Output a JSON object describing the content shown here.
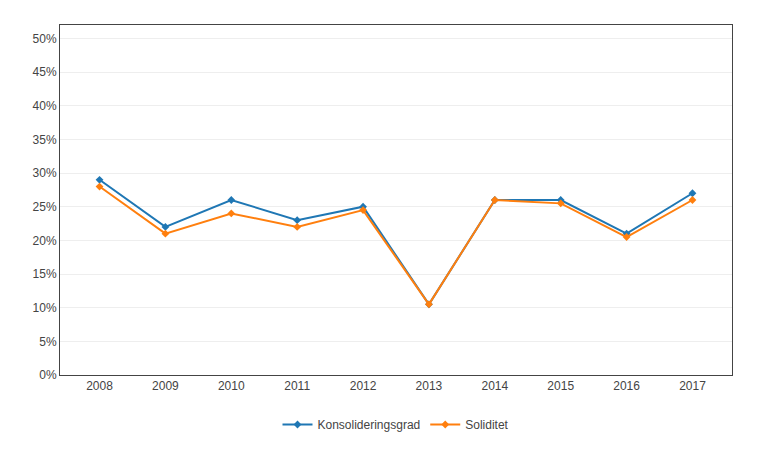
{
  "chart_data": {
    "type": "line",
    "x": [
      2008,
      2009,
      2010,
      2011,
      2012,
      2013,
      2014,
      2015,
      2016,
      2017
    ],
    "series": [
      {
        "name": "Konsolideringsgrad",
        "values": [
          0.29,
          0.22,
          0.26,
          0.23,
          0.25,
          0.105,
          0.26,
          0.26,
          0.21,
          0.27
        ],
        "marker": "diamond",
        "line_style": "solid"
      },
      {
        "name": "Soliditet",
        "values": [
          0.28,
          0.21,
          0.24,
          0.22,
          0.245,
          0.105,
          0.26,
          0.255,
          0.205,
          0.26
        ],
        "marker": "diamond",
        "line_style": "solid"
      }
    ],
    "xlim": [
      2007.4,
      2017.6
    ],
    "xticks": [
      2008,
      2009,
      2010,
      2011,
      2012,
      2013,
      2014,
      2015,
      2016,
      2017
    ],
    "ylim": [
      0.0,
      0.52
    ],
    "yticks": [
      {
        "value": 0.0,
        "label": "0%"
      },
      {
        "value": 0.05,
        "label": "5%"
      },
      {
        "value": 0.1,
        "label": "10%"
      },
      {
        "value": 0.15,
        "label": "15%"
      },
      {
        "value": 0.2,
        "label": "20%"
      },
      {
        "value": 0.25,
        "label": "25%"
      },
      {
        "value": 0.3,
        "label": "30%"
      },
      {
        "value": 0.35,
        "label": "35%"
      },
      {
        "value": 0.4,
        "label": "40%"
      },
      {
        "value": 0.45,
        "label": "45%"
      },
      {
        "value": 0.5,
        "label": "50%"
      }
    ],
    "grid": "y",
    "legend": "bottom"
  }
}
